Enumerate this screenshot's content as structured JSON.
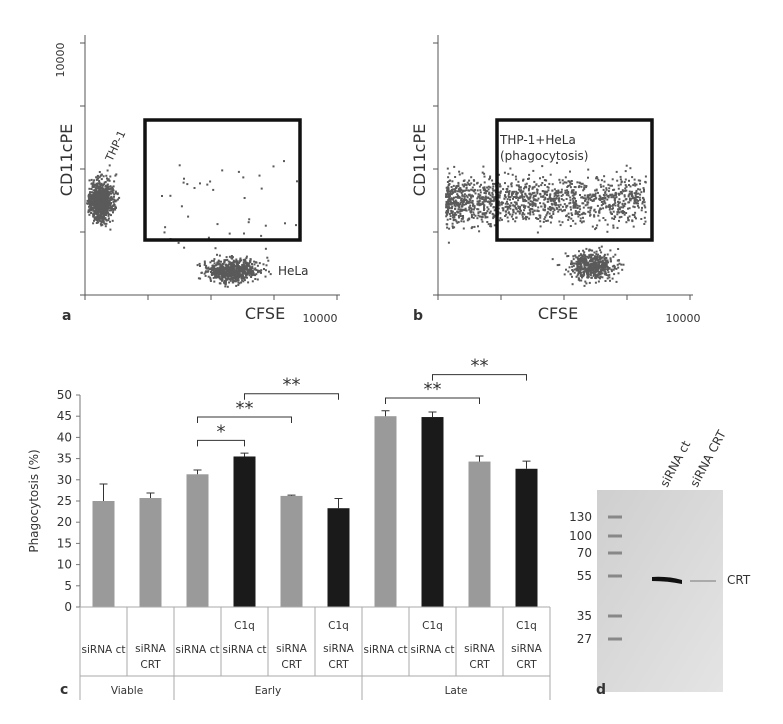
{
  "flow_panels": [
    {
      "label": "a",
      "y_axis_label": "CD11cPE",
      "x_axis_label": "CFSE",
      "y_max_label": "10000",
      "x_max_label": "10000",
      "annotations": [
        "THP-1",
        "HeLa"
      ]
    },
    {
      "label": "b",
      "y_axis_label": "CD11cPE",
      "x_axis_label": "CFSE",
      "x_max_label": "10000",
      "annotations": [
        "THP-1+HeLa",
        "(phagocytosis)"
      ]
    }
  ],
  "chart_data": {
    "type": "bar",
    "label": "c",
    "y_axis_label": "Phagocytosis (%)",
    "values": [
      25,
      25.7,
      31.3,
      35.5,
      26.2,
      23.3,
      45,
      44.8,
      34.3,
      32.6
    ],
    "errors": [
      4,
      1.2,
      1,
      0.8,
      0.2,
      2.3,
      1.3,
      1.2,
      1.3,
      1.8
    ],
    "colors": [
      "#9a9a9a",
      "#9a9a9a",
      "#9a9a9a",
      "#1a1a1a",
      "#9a9a9a",
      "#1a1a1a",
      "#9a9a9a",
      "#1a1a1a",
      "#9a9a9a",
      "#1a1a1a"
    ],
    "treatment_labels": [
      null,
      null,
      null,
      "C1q",
      null,
      "C1q",
      null,
      "C1q",
      null,
      "C1q"
    ],
    "categories": [
      "siRNA ct",
      "siRNA CRT",
      "siRNA ct",
      "siRNA ct",
      "siRNA CRT",
      "siRNA CRT",
      "siRNA ct",
      "siRNA ct",
      "siRNA CRT",
      "siRNA CRT"
    ],
    "groups": [
      {
        "label": "Viable",
        "count": 2
      },
      {
        "label": "Early",
        "count": 4
      },
      {
        "label": "Late",
        "count": 4
      }
    ],
    "significance": [
      {
        "from": 2,
        "to": 3,
        "label": "*"
      },
      {
        "from": 2,
        "to": 4,
        "label": "**"
      },
      {
        "from": 3,
        "to": 5,
        "label": "**"
      },
      {
        "from": 6,
        "to": 8,
        "label": "**"
      },
      {
        "from": 7,
        "to": 9,
        "label": "**"
      }
    ],
    "ylim": [
      0,
      50
    ],
    "yticks": [
      0,
      5,
      10,
      15,
      20,
      25,
      30,
      35,
      40,
      45,
      50
    ]
  },
  "gel": {
    "label": "d",
    "markers": [
      130,
      100,
      70,
      55,
      35,
      27
    ],
    "lanes": [
      "siRNA ct",
      "siRNA CRT"
    ],
    "band_label": "CRT"
  }
}
